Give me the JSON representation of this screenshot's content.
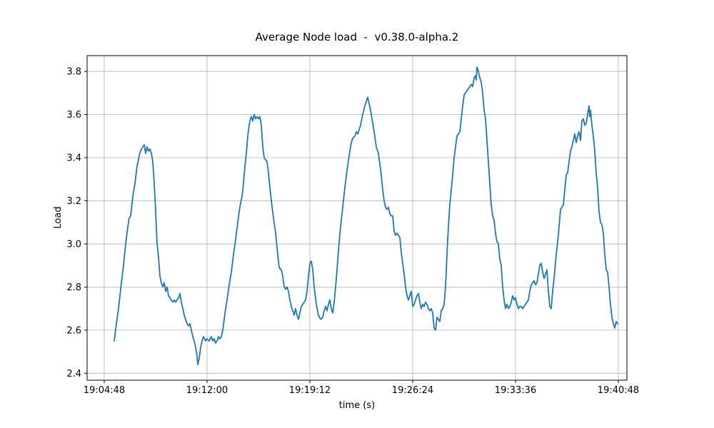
{
  "chart_data": {
    "type": "line",
    "title": "Average Node load  -  v0.38.0-alpha.2",
    "xlabel": "time (s)",
    "ylabel": "Load",
    "legend": null,
    "grid": true,
    "line_color": "#1f77b4",
    "grid_color": "#b0b0b0",
    "spine_color": "#000000",
    "x_tick_origin_time": "19:04:48",
    "x_ticks": [
      {
        "t": 0,
        "label": "19:04:48"
      },
      {
        "t": 432,
        "label": "19:12:00"
      },
      {
        "t": 864,
        "label": "19:19:12"
      },
      {
        "t": 1296,
        "label": "19:26:24"
      },
      {
        "t": 1728,
        "label": "19:33:36"
      },
      {
        "t": 2160,
        "label": "19:40:48"
      }
    ],
    "y_ticks": [
      {
        "v": 2.4,
        "label": "2.4"
      },
      {
        "v": 2.6,
        "label": "2.6"
      },
      {
        "v": 2.8,
        "label": "2.8"
      },
      {
        "v": 3.0,
        "label": "3.0"
      },
      {
        "v": 3.2,
        "label": "3.2"
      },
      {
        "v": 3.4,
        "label": "3.4"
      },
      {
        "v": 3.6,
        "label": "3.6"
      },
      {
        "v": 3.8,
        "label": "3.8"
      }
    ],
    "xlim_seconds": [
      -72,
      2196
    ],
    "ylim": [
      2.368,
      3.873
    ],
    "series_name": "Average Node load",
    "points": [
      [
        42,
        2.55
      ],
      [
        51,
        2.63
      ],
      [
        60,
        2.7
      ],
      [
        72,
        2.82
      ],
      [
        81,
        2.9
      ],
      [
        90,
        3.0
      ],
      [
        99,
        3.08
      ],
      [
        105,
        3.12
      ],
      [
        111,
        3.13
      ],
      [
        120,
        3.22
      ],
      [
        129,
        3.28
      ],
      [
        138,
        3.36
      ],
      [
        147,
        3.41
      ],
      [
        156,
        3.44
      ],
      [
        162,
        3.45
      ],
      [
        168,
        3.46
      ],
      [
        174,
        3.42
      ],
      [
        180,
        3.45
      ],
      [
        186,
        3.43
      ],
      [
        192,
        3.44
      ],
      [
        198,
        3.42
      ],
      [
        204,
        3.38
      ],
      [
        210,
        3.28
      ],
      [
        216,
        3.15
      ],
      [
        222,
        3.0
      ],
      [
        228,
        2.94
      ],
      [
        234,
        2.85
      ],
      [
        240,
        2.82
      ],
      [
        246,
        2.8
      ],
      [
        252,
        2.82
      ],
      [
        258,
        2.78
      ],
      [
        264,
        2.8
      ],
      [
        270,
        2.76
      ],
      [
        276,
        2.75
      ],
      [
        282,
        2.74
      ],
      [
        288,
        2.73
      ],
      [
        294,
        2.74
      ],
      [
        300,
        2.73
      ],
      [
        306,
        2.74
      ],
      [
        312,
        2.75
      ],
      [
        318,
        2.77
      ],
      [
        324,
        2.73
      ],
      [
        330,
        2.7
      ],
      [
        336,
        2.67
      ],
      [
        342,
        2.65
      ],
      [
        348,
        2.63
      ],
      [
        354,
        2.62
      ],
      [
        360,
        2.63
      ],
      [
        366,
        2.6
      ],
      [
        372,
        2.57
      ],
      [
        378,
        2.55
      ],
      [
        384,
        2.52
      ],
      [
        390,
        2.48
      ],
      [
        393,
        2.44
      ],
      [
        399,
        2.47
      ],
      [
        405,
        2.52
      ],
      [
        411,
        2.55
      ],
      [
        417,
        2.57
      ],
      [
        426,
        2.55
      ],
      [
        432,
        2.56
      ],
      [
        441,
        2.55
      ],
      [
        450,
        2.57
      ],
      [
        456,
        2.55
      ],
      [
        462,
        2.56
      ],
      [
        468,
        2.54
      ],
      [
        474,
        2.55
      ],
      [
        480,
        2.57
      ],
      [
        486,
        2.56
      ],
      [
        492,
        2.57
      ],
      [
        498,
        2.6
      ],
      [
        504,
        2.65
      ],
      [
        510,
        2.7
      ],
      [
        516,
        2.74
      ],
      [
        525,
        2.81
      ],
      [
        534,
        2.87
      ],
      [
        543,
        2.95
      ],
      [
        552,
        3.02
      ],
      [
        561,
        3.1
      ],
      [
        567,
        3.15
      ],
      [
        573,
        3.19
      ],
      [
        579,
        3.22
      ],
      [
        585,
        3.28
      ],
      [
        591,
        3.36
      ],
      [
        597,
        3.42
      ],
      [
        603,
        3.5
      ],
      [
        609,
        3.55
      ],
      [
        612,
        3.57
      ],
      [
        618,
        3.59
      ],
      [
        624,
        3.57
      ],
      [
        630,
        3.6
      ],
      [
        636,
        3.58
      ],
      [
        642,
        3.59
      ],
      [
        648,
        3.58
      ],
      [
        654,
        3.59
      ],
      [
        660,
        3.55
      ],
      [
        666,
        3.45
      ],
      [
        672,
        3.4
      ],
      [
        678,
        3.39
      ],
      [
        684,
        3.38
      ],
      [
        690,
        3.33
      ],
      [
        696,
        3.26
      ],
      [
        702,
        3.2
      ],
      [
        711,
        3.12
      ],
      [
        720,
        3.05
      ],
      [
        729,
        2.95
      ],
      [
        735,
        2.89
      ],
      [
        744,
        2.88
      ],
      [
        750,
        2.85
      ],
      [
        756,
        2.8
      ],
      [
        762,
        2.79
      ],
      [
        768,
        2.8
      ],
      [
        774,
        2.78
      ],
      [
        780,
        2.74
      ],
      [
        786,
        2.71
      ],
      [
        792,
        2.69
      ],
      [
        798,
        2.67
      ],
      [
        804,
        2.7
      ],
      [
        810,
        2.67
      ],
      [
        816,
        2.65
      ],
      [
        822,
        2.68
      ],
      [
        828,
        2.71
      ],
      [
        834,
        2.72
      ],
      [
        840,
        2.73
      ],
      [
        846,
        2.74
      ],
      [
        852,
        2.78
      ],
      [
        858,
        2.85
      ],
      [
        864,
        2.91
      ],
      [
        870,
        2.92
      ],
      [
        876,
        2.88
      ],
      [
        882,
        2.8
      ],
      [
        891,
        2.72
      ],
      [
        900,
        2.67
      ],
      [
        909,
        2.65
      ],
      [
        918,
        2.66
      ],
      [
        924,
        2.69
      ],
      [
        930,
        2.71
      ],
      [
        936,
        2.69
      ],
      [
        942,
        2.72
      ],
      [
        948,
        2.74
      ],
      [
        954,
        2.7
      ],
      [
        960,
        2.68
      ],
      [
        966,
        2.73
      ],
      [
        972,
        2.8
      ],
      [
        978,
        2.88
      ],
      [
        984,
        2.97
      ],
      [
        993,
        3.08
      ],
      [
        1002,
        3.17
      ],
      [
        1011,
        3.26
      ],
      [
        1020,
        3.34
      ],
      [
        1029,
        3.41
      ],
      [
        1038,
        3.47
      ],
      [
        1044,
        3.49
      ],
      [
        1053,
        3.5
      ],
      [
        1059,
        3.52
      ],
      [
        1065,
        3.51
      ],
      [
        1071,
        3.53
      ],
      [
        1077,
        3.55
      ],
      [
        1086,
        3.6
      ],
      [
        1095,
        3.64
      ],
      [
        1101,
        3.66
      ],
      [
        1107,
        3.68
      ],
      [
        1113,
        3.65
      ],
      [
        1119,
        3.62
      ],
      [
        1125,
        3.58
      ],
      [
        1134,
        3.52
      ],
      [
        1143,
        3.45
      ],
      [
        1152,
        3.42
      ],
      [
        1158,
        3.37
      ],
      [
        1164,
        3.32
      ],
      [
        1170,
        3.25
      ],
      [
        1176,
        3.2
      ],
      [
        1182,
        3.17
      ],
      [
        1188,
        3.16
      ],
      [
        1194,
        3.17
      ],
      [
        1200,
        3.14
      ],
      [
        1206,
        3.13
      ],
      [
        1212,
        3.13
      ],
      [
        1218,
        3.06
      ],
      [
        1224,
        3.04
      ],
      [
        1230,
        3.05
      ],
      [
        1236,
        3.04
      ],
      [
        1242,
        3.03
      ],
      [
        1248,
        2.96
      ],
      [
        1254,
        2.91
      ],
      [
        1260,
        2.86
      ],
      [
        1266,
        2.8
      ],
      [
        1272,
        2.76
      ],
      [
        1278,
        2.74
      ],
      [
        1284,
        2.76
      ],
      [
        1290,
        2.78
      ],
      [
        1296,
        2.71
      ],
      [
        1302,
        2.72
      ],
      [
        1308,
        2.74
      ],
      [
        1314,
        2.76
      ],
      [
        1320,
        2.77
      ],
      [
        1326,
        2.73
      ],
      [
        1332,
        2.7
      ],
      [
        1338,
        2.72
      ],
      [
        1344,
        2.71
      ],
      [
        1350,
        2.73
      ],
      [
        1356,
        2.72
      ],
      [
        1362,
        2.7
      ],
      [
        1368,
        2.69
      ],
      [
        1374,
        2.7
      ],
      [
        1380,
        2.68
      ],
      [
        1386,
        2.61
      ],
      [
        1392,
        2.6
      ],
      [
        1398,
        2.66
      ],
      [
        1404,
        2.65
      ],
      [
        1410,
        2.64
      ],
      [
        1416,
        2.69
      ],
      [
        1422,
        2.7
      ],
      [
        1428,
        2.72
      ],
      [
        1434,
        2.8
      ],
      [
        1440,
        2.95
      ],
      [
        1446,
        3.08
      ],
      [
        1452,
        3.18
      ],
      [
        1458,
        3.25
      ],
      [
        1464,
        3.32
      ],
      [
        1470,
        3.4
      ],
      [
        1476,
        3.45
      ],
      [
        1482,
        3.5
      ],
      [
        1488,
        3.51
      ],
      [
        1494,
        3.52
      ],
      [
        1500,
        3.58
      ],
      [
        1506,
        3.64
      ],
      [
        1512,
        3.69
      ],
      [
        1518,
        3.7
      ],
      [
        1524,
        3.71
      ],
      [
        1530,
        3.72
      ],
      [
        1536,
        3.73
      ],
      [
        1542,
        3.74
      ],
      [
        1548,
        3.73
      ],
      [
        1554,
        3.77
      ],
      [
        1560,
        3.78
      ],
      [
        1563,
        3.76
      ],
      [
        1566,
        3.82
      ],
      [
        1572,
        3.8
      ],
      [
        1578,
        3.77
      ],
      [
        1584,
        3.75
      ],
      [
        1590,
        3.7
      ],
      [
        1596,
        3.62
      ],
      [
        1602,
        3.58
      ],
      [
        1608,
        3.48
      ],
      [
        1614,
        3.38
      ],
      [
        1620,
        3.28
      ],
      [
        1626,
        3.18
      ],
      [
        1632,
        3.13
      ],
      [
        1638,
        3.11
      ],
      [
        1644,
        3.05
      ],
      [
        1650,
        3.01
      ],
      [
        1656,
        3.0
      ],
      [
        1662,
        2.93
      ],
      [
        1668,
        2.9
      ],
      [
        1674,
        2.8
      ],
      [
        1680,
        2.74
      ],
      [
        1686,
        2.7
      ],
      [
        1692,
        2.72
      ],
      [
        1698,
        2.7
      ],
      [
        1704,
        2.71
      ],
      [
        1710,
        2.73
      ],
      [
        1716,
        2.76
      ],
      [
        1722,
        2.74
      ],
      [
        1728,
        2.75
      ],
      [
        1734,
        2.72
      ],
      [
        1740,
        2.7
      ],
      [
        1746,
        2.71
      ],
      [
        1752,
        2.71
      ],
      [
        1758,
        2.7
      ],
      [
        1764,
        2.71
      ],
      [
        1770,
        2.72
      ],
      [
        1776,
        2.73
      ],
      [
        1782,
        2.74
      ],
      [
        1788,
        2.78
      ],
      [
        1794,
        2.81
      ],
      [
        1800,
        2.82
      ],
      [
        1806,
        2.83
      ],
      [
        1812,
        2.81
      ],
      [
        1818,
        2.82
      ],
      [
        1824,
        2.86
      ],
      [
        1830,
        2.9
      ],
      [
        1836,
        2.91
      ],
      [
        1842,
        2.87
      ],
      [
        1848,
        2.84
      ],
      [
        1854,
        2.86
      ],
      [
        1860,
        2.88
      ],
      [
        1866,
        2.78
      ],
      [
        1872,
        2.71
      ],
      [
        1878,
        2.7
      ],
      [
        1884,
        2.78
      ],
      [
        1890,
        2.84
      ],
      [
        1899,
        2.95
      ],
      [
        1908,
        3.04
      ],
      [
        1917,
        3.16
      ],
      [
        1923,
        3.17
      ],
      [
        1929,
        3.18
      ],
      [
        1935,
        3.25
      ],
      [
        1941,
        3.32
      ],
      [
        1947,
        3.33
      ],
      [
        1953,
        3.38
      ],
      [
        1959,
        3.43
      ],
      [
        1965,
        3.45
      ],
      [
        1971,
        3.48
      ],
      [
        1977,
        3.51
      ],
      [
        1983,
        3.47
      ],
      [
        1989,
        3.5
      ],
      [
        1995,
        3.52
      ],
      [
        2001,
        3.48
      ],
      [
        2007,
        3.57
      ],
      [
        2013,
        3.58
      ],
      [
        2019,
        3.55
      ],
      [
        2025,
        3.56
      ],
      [
        2031,
        3.6
      ],
      [
        2037,
        3.64
      ],
      [
        2040,
        3.59
      ],
      [
        2043,
        3.62
      ],
      [
        2049,
        3.55
      ],
      [
        2055,
        3.5
      ],
      [
        2061,
        3.43
      ],
      [
        2067,
        3.33
      ],
      [
        2073,
        3.26
      ],
      [
        2079,
        3.15
      ],
      [
        2085,
        3.1
      ],
      [
        2091,
        3.09
      ],
      [
        2097,
        3.05
      ],
      [
        2103,
        2.95
      ],
      [
        2109,
        2.88
      ],
      [
        2115,
        2.87
      ],
      [
        2121,
        2.8
      ],
      [
        2127,
        2.72
      ],
      [
        2133,
        2.66
      ],
      [
        2139,
        2.63
      ],
      [
        2145,
        2.61
      ],
      [
        2151,
        2.64
      ],
      [
        2157,
        2.63
      ]
    ]
  }
}
